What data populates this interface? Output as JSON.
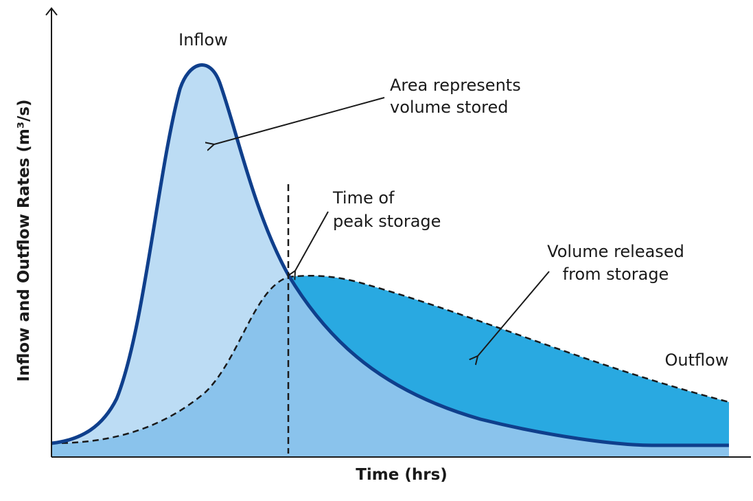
{
  "axes": {
    "x_label": "Time (hrs)",
    "y_label": "Inflow and Outflow Rates (m³/s)"
  },
  "labels": {
    "inflow": "Inflow",
    "outflow": "Outflow",
    "volume_stored": [
      "Area represents",
      "volume stored"
    ],
    "peak_storage": [
      "Time of",
      "peak storage"
    ],
    "volume_released": [
      "Volume released",
      "from storage"
    ]
  }
}
